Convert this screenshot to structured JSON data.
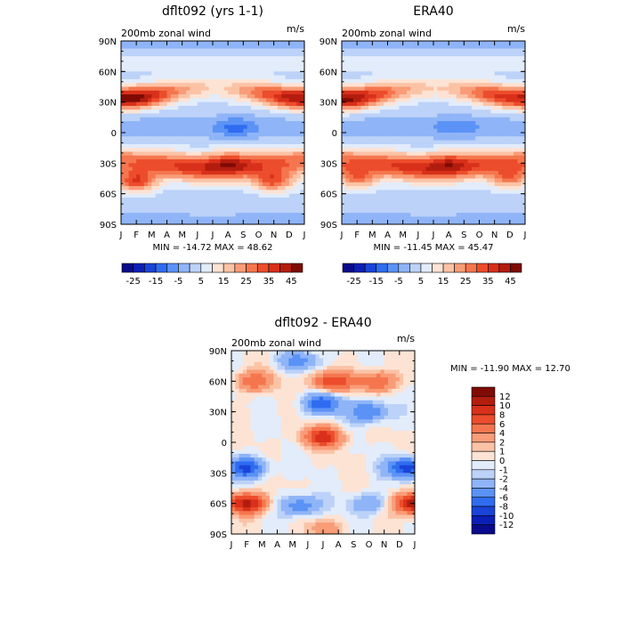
{
  "chart_data": [
    {
      "type": "heatmap",
      "title": "dflt092 (yrs 1-1)",
      "subtitle_left": "200mb zonal wind",
      "subtitle_right": "m/s",
      "x_ticks": [
        "J",
        "F",
        "M",
        "A",
        "M",
        "J",
        "J",
        "A",
        "S",
        "O",
        "N",
        "D",
        "J"
      ],
      "y_ticks": [
        "90N",
        "60N",
        "30N",
        "0",
        "30S",
        "60S",
        "90S"
      ],
      "stats": "MIN = -14.72  MAX =  48.62",
      "colorbar_levels": [
        -30,
        -25,
        -20,
        -15,
        -10,
        -5,
        0,
        5,
        10,
        15,
        20,
        25,
        30,
        35,
        40,
        45,
        50
      ],
      "colorbar_labels": [
        "-25",
        "-15",
        "-5",
        "5",
        "15",
        "25",
        "35",
        "45"
      ],
      "features": [
        {
          "lat": 32,
          "month": 0.0,
          "value": 42
        },
        {
          "lat": 33,
          "month": 1.0,
          "value": 45
        },
        {
          "lat": 34,
          "month": 2.0,
          "value": 36
        },
        {
          "lat": 45,
          "month": 6.5,
          "value": 14
        },
        {
          "lat": 33,
          "month": 11.0,
          "value": 40
        },
        {
          "lat": 32,
          "month": 12.0,
          "value": 44
        },
        {
          "lat": 5,
          "month": 7.5,
          "value": -12
        },
        {
          "lat": -28,
          "month": 7.0,
          "value": 42
        },
        {
          "lat": -48,
          "month": 1.0,
          "value": 36
        },
        {
          "lat": -48,
          "month": 10.0,
          "value": 34
        },
        {
          "lat": -75,
          "month": 6.0,
          "value": 4
        }
      ]
    },
    {
      "type": "heatmap",
      "title": "ERA40",
      "subtitle_left": "200mb zonal wind",
      "subtitle_right": "m/s",
      "x_ticks": [
        "J",
        "F",
        "M",
        "A",
        "M",
        "J",
        "J",
        "A",
        "S",
        "O",
        "N",
        "D",
        "J"
      ],
      "y_ticks": [
        "90N",
        "60N",
        "30N",
        "0",
        "30S",
        "60S",
        "90S"
      ],
      "stats": "MIN = -11.45  MAX =  45.47",
      "colorbar_levels": [
        -30,
        -25,
        -20,
        -15,
        -10,
        -5,
        0,
        5,
        10,
        15,
        20,
        25,
        30,
        35,
        40,
        45,
        50
      ],
      "colorbar_labels": [
        "-25",
        "-15",
        "-5",
        "5",
        "15",
        "25",
        "35",
        "45"
      ],
      "features": [
        {
          "lat": 30,
          "month": 0.5,
          "value": 42
        },
        {
          "lat": 34,
          "month": 2.0,
          "value": 34
        },
        {
          "lat": 45,
          "month": 6.5,
          "value": 15
        },
        {
          "lat": 32,
          "month": 12.0,
          "value": 40
        },
        {
          "lat": 6,
          "month": 7.5,
          "value": -10
        },
        {
          "lat": -28,
          "month": 7.0,
          "value": 40
        },
        {
          "lat": -45,
          "month": 1.0,
          "value": 30
        },
        {
          "lat": -45,
          "month": 11.0,
          "value": 30
        },
        {
          "lat": -78,
          "month": 6.0,
          "value": 3
        }
      ]
    },
    {
      "type": "heatmap",
      "title": "dflt092 - ERA40",
      "subtitle_left": "200mb zonal wind",
      "subtitle_right": "m/s",
      "x_ticks": [
        "J",
        "F",
        "M",
        "A",
        "M",
        "J",
        "J",
        "A",
        "S",
        "O",
        "N",
        "D",
        "J"
      ],
      "y_ticks": [
        "90N",
        "60N",
        "30N",
        "0",
        "30S",
        "60S",
        "90S"
      ],
      "stats": "MIN = -11.90  MAX =  12.70",
      "colorbar_levels": [
        -14,
        -12,
        -10,
        -8,
        -6,
        -4,
        -2,
        -1,
        0,
        1,
        2,
        4,
        6,
        8,
        10,
        12,
        14
      ],
      "colorbar_labels": [
        "12",
        "10",
        "8",
        "6",
        "4",
        "2",
        "1",
        "0",
        "-1",
        "-2",
        "-4",
        "-6",
        "-8",
        "-10",
        "-12"
      ],
      "features": [
        {
          "lat": 60,
          "month": 1.5,
          "value": 6
        },
        {
          "lat": 60,
          "month": 6.5,
          "value": 8
        },
        {
          "lat": 60,
          "month": 9.5,
          "value": 6
        },
        {
          "lat": 80,
          "month": 4.5,
          "value": -5
        },
        {
          "lat": 30,
          "month": 9.0,
          "value": -6
        },
        {
          "lat": 38,
          "month": 6.0,
          "value": -8
        },
        {
          "lat": 5,
          "month": 6.0,
          "value": 10
        },
        {
          "lat": -25,
          "month": 1.0,
          "value": -9
        },
        {
          "lat": -25,
          "month": 11.5,
          "value": -9
        },
        {
          "lat": -60,
          "month": 1.0,
          "value": 11
        },
        {
          "lat": -60,
          "month": 12.0,
          "value": 12
        },
        {
          "lat": -62,
          "month": 4.5,
          "value": -5
        },
        {
          "lat": -60,
          "month": 9.0,
          "value": -4
        },
        {
          "lat": -85,
          "month": 6.0,
          "value": 3
        }
      ]
    }
  ]
}
